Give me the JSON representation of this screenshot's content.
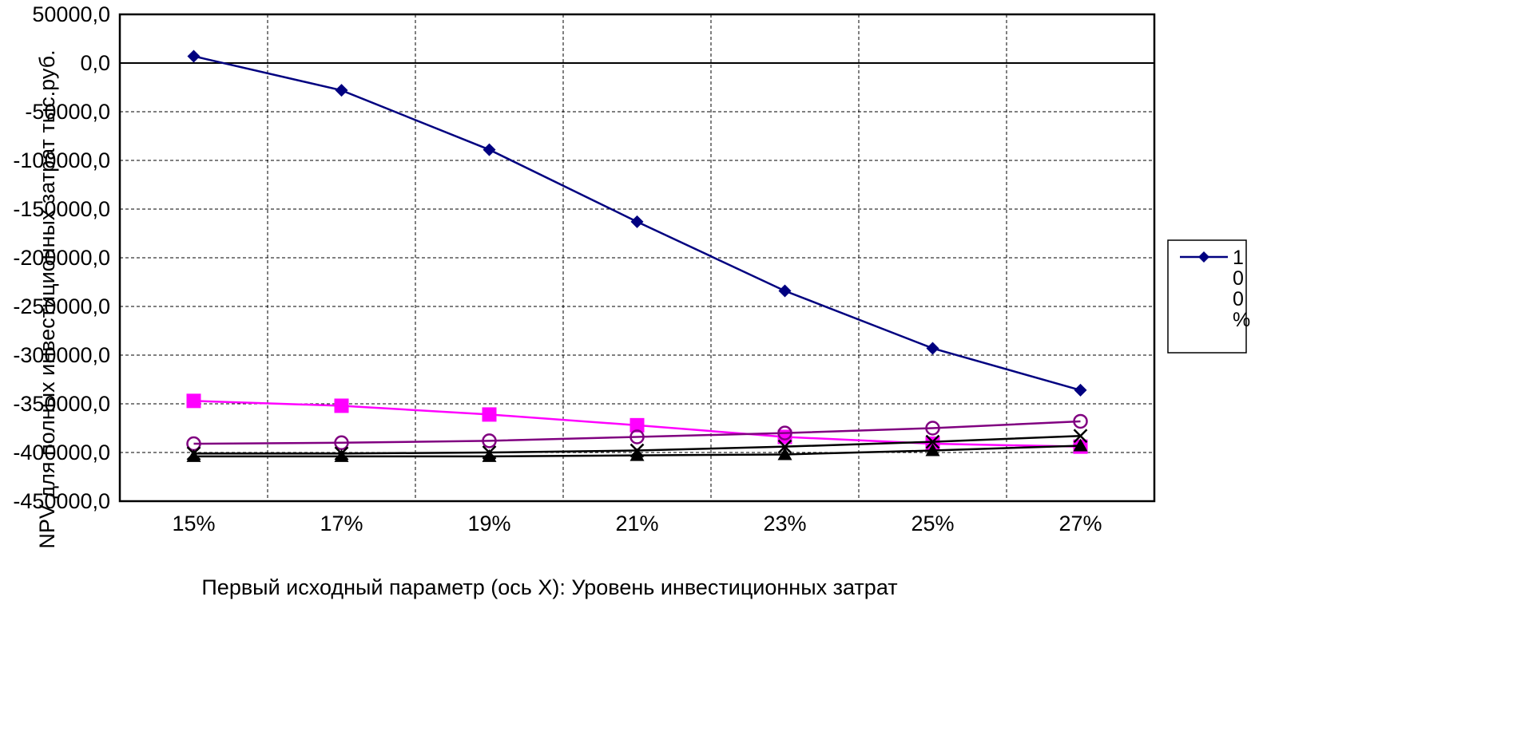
{
  "chart_data": {
    "type": "line",
    "title": "",
    "xlabel": "Первый исходный параметр (ось X): Уровень инвестиционных затрат",
    "ylabel": "NPV для полных инвестиционных затрат тыс.руб.",
    "categories": [
      "15%",
      "17%",
      "19%",
      "21%",
      "23%",
      "25%",
      "27%"
    ],
    "y_tick_labels": [
      "50000,0",
      "0,0",
      "-50000,0",
      "-100000,0",
      "-150000,0",
      "-200000,0",
      "-250000,0",
      "-300000,0",
      "-350000,0",
      "-400000,0",
      "-450000,0"
    ],
    "y_ticks": [
      50000,
      0,
      -50000,
      -100000,
      -150000,
      -200000,
      -250000,
      -300000,
      -350000,
      -400000,
      -450000
    ],
    "ylim": [
      -450000,
      50000
    ],
    "grid": true,
    "legend_position": "right",
    "series": [
      {
        "name": "100%",
        "color": "#000080",
        "marker": "diamond",
        "values": [
          7000,
          -28000,
          -89000,
          -163000,
          -234000,
          -293000,
          -336000
        ]
      },
      {
        "color": "#ff00ff",
        "marker": "square",
        "values": [
          -347000,
          -352000,
          -361000,
          -372000,
          -384000,
          -391000,
          -394000
        ]
      },
      {
        "color": "#800080",
        "marker": "circle-open",
        "values": [
          -391000,
          -390000,
          -388000,
          -384000,
          -380000,
          -375000,
          -368000
        ]
      },
      {
        "color": "#000000",
        "marker": "x",
        "values": [
          -401000,
          -401000,
          -400000,
          -398000,
          -394000,
          -389000,
          -383000
        ]
      },
      {
        "color": "#000000",
        "marker": "triangle",
        "values": [
          -404000,
          -404000,
          -404000,
          -403000,
          -402000,
          -398000,
          -393000
        ]
      }
    ]
  }
}
